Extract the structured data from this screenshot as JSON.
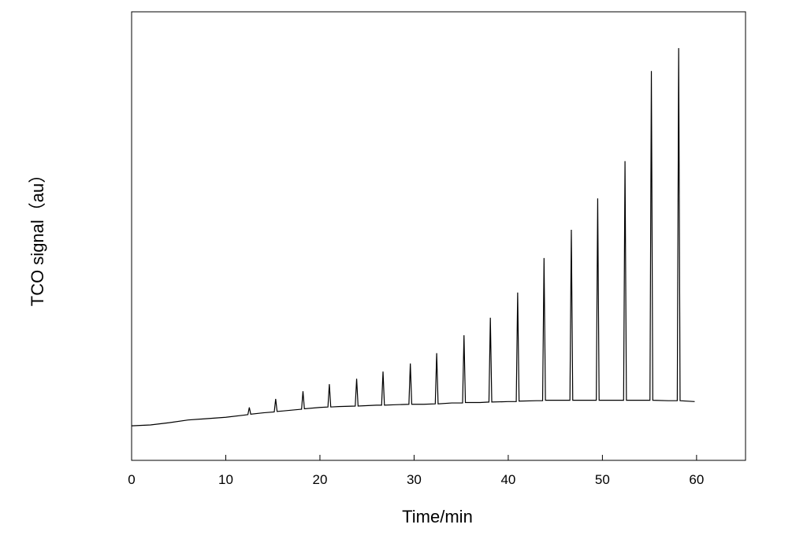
{
  "chart_data": {
    "type": "line",
    "xlabel": "Time/min",
    "ylabel": "TCO signal（au）",
    "xlim": [
      0,
      65.2
    ],
    "ylim": [
      0,
      100
    ],
    "xticks": [
      0,
      10,
      20,
      30,
      40,
      50,
      60
    ],
    "series": [
      {
        "color": "#000000",
        "x": [
          0,
          2,
          4,
          6,
          8,
          10,
          12,
          12.35,
          12.5,
          12.65,
          14,
          15.15,
          15.3,
          15.45,
          16,
          18.05,
          18.2,
          18.35,
          20,
          20.85,
          21.0,
          21.15,
          22,
          23.75,
          23.9,
          24.05,
          26,
          26.55,
          26.7,
          26.85,
          28,
          29.45,
          29.6,
          29.75,
          31,
          32.25,
          32.4,
          32.55,
          34,
          35.15,
          35.3,
          35.45,
          37,
          37.95,
          38.1,
          38.25,
          40,
          40.85,
          41.0,
          41.15,
          43,
          43.65,
          43.8,
          43.95,
          45,
          46.55,
          46.7,
          46.85,
          48,
          49.35,
          49.5,
          49.65,
          51,
          52.25,
          52.4,
          52.55,
          54,
          55.05,
          55.2,
          55.35,
          57,
          57.95,
          58.1,
          58.25,
          59.8
        ],
        "values": [
          7.7,
          7.9,
          8.4,
          9.0,
          9.3,
          9.6,
          10.1,
          10.2,
          11.8,
          10.3,
          10.6,
          10.8,
          13.7,
          10.9,
          11.0,
          11.4,
          15.4,
          11.5,
          11.8,
          11.9,
          17.0,
          11.9,
          12.0,
          12.1,
          18.2,
          12.1,
          12.3,
          12.3,
          19.8,
          12.3,
          12.4,
          12.5,
          21.6,
          12.5,
          12.5,
          12.6,
          23.9,
          12.6,
          12.8,
          12.8,
          27.9,
          12.9,
          12.9,
          13.0,
          31.8,
          13.0,
          13.1,
          13.1,
          37.4,
          13.2,
          13.3,
          13.3,
          45.1,
          13.4,
          13.4,
          13.4,
          51.4,
          13.4,
          13.4,
          13.4,
          58.4,
          13.4,
          13.4,
          13.4,
          66.7,
          13.4,
          13.4,
          13.4,
          86.8,
          13.4,
          13.3,
          13.3,
          91.9,
          13.3,
          13.1
        ]
      }
    ]
  }
}
